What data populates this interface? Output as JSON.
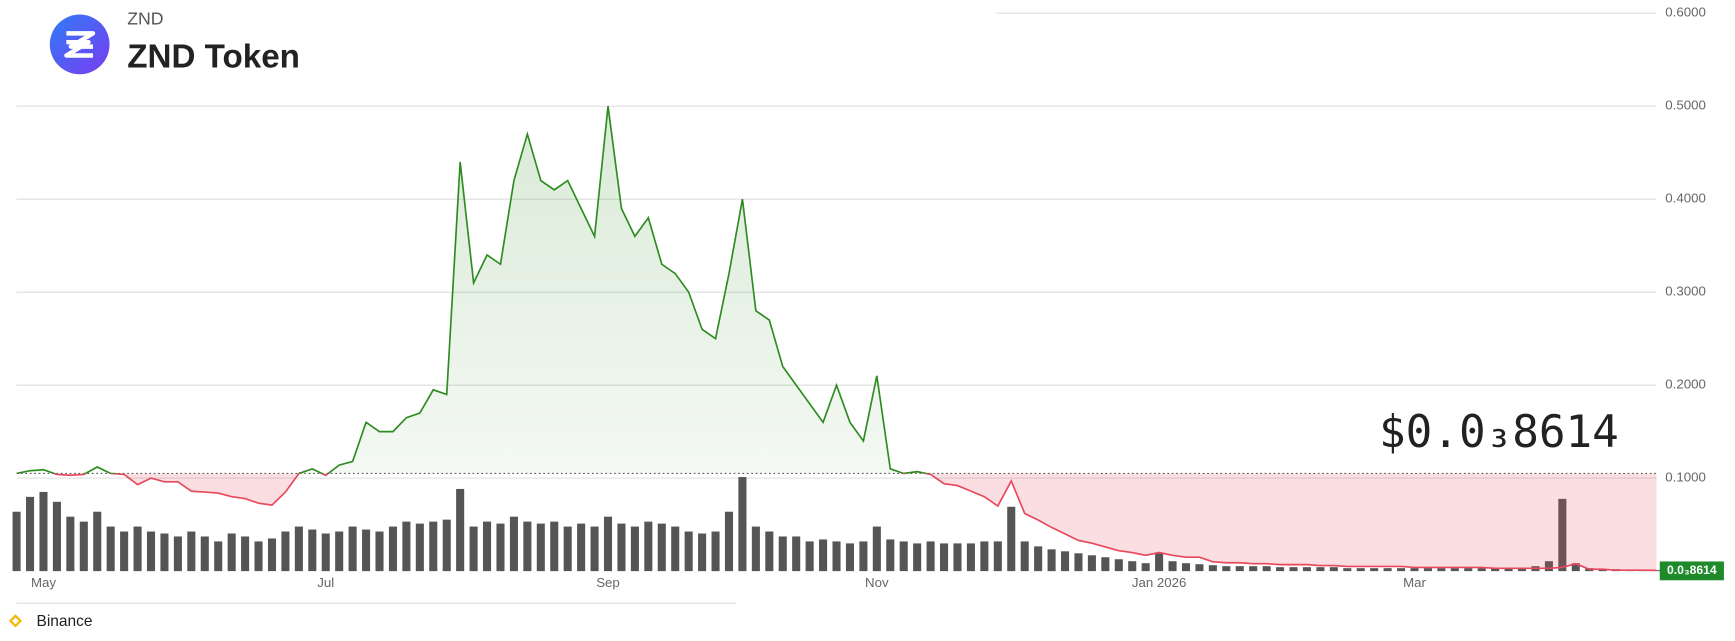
{
  "chart_data": {
    "type": "price-volume",
    "subtitle": "ZND",
    "title": "ZND Token",
    "source": "Binance",
    "price_display": "$0.0₃8614",
    "last_price": {
      "value": 0.0008614,
      "label": "0.0₃8614"
    },
    "baseline": 0.105,
    "up_color": "#2e8b22",
    "down_color": "#e8485c",
    "volume_color": "#555555",
    "tag_color": "#1f8a2a",
    "grid": true,
    "ylim": [
      0,
      0.614
    ],
    "yticks": [
      {
        "value": 0.1,
        "label": "0.1000"
      },
      {
        "value": 0.2,
        "label": "0.2000"
      },
      {
        "value": 0.3,
        "label": "0.3000"
      },
      {
        "value": 0.4,
        "label": "0.4000"
      },
      {
        "value": 0.5,
        "label": "0.5000"
      },
      {
        "value": 0.6,
        "label": "0.6000"
      }
    ],
    "categories": [
      null,
      null,
      "May",
      null,
      null,
      null,
      null,
      null,
      null,
      null,
      null,
      null,
      null,
      null,
      null,
      null,
      null,
      null,
      null,
      null,
      null,
      null,
      null,
      "Jul",
      null,
      null,
      null,
      null,
      null,
      null,
      null,
      null,
      null,
      null,
      null,
      null,
      null,
      null,
      null,
      null,
      null,
      null,
      null,
      null,
      "Sep",
      null,
      null,
      null,
      null,
      null,
      null,
      null,
      null,
      null,
      null,
      null,
      null,
      null,
      null,
      null,
      null,
      null,
      null,
      null,
      "Nov",
      null,
      null,
      null,
      null,
      null,
      null,
      null,
      null,
      null,
      null,
      null,
      null,
      null,
      null,
      null,
      null,
      null,
      null,
      null,
      null,
      "Jan 2026",
      null,
      null,
      null,
      null,
      null,
      null,
      null,
      null,
      null,
      null,
      null,
      null,
      null,
      null,
      null,
      null,
      null,
      null,
      "Mar",
      null,
      null,
      null,
      null,
      null,
      null,
      null,
      null,
      null,
      null,
      null,
      null,
      null,
      null,
      null,
      null,
      null,
      null
    ],
    "values": [
      0.105,
      0.108,
      0.109,
      0.104,
      0.103,
      0.104,
      0.112,
      0.105,
      0.104,
      0.093,
      0.1,
      0.096,
      0.096,
      0.086,
      0.085,
      0.084,
      0.08,
      0.078,
      0.073,
      0.071,
      0.085,
      0.105,
      0.11,
      0.103,
      0.114,
      0.118,
      0.16,
      0.15,
      0.15,
      0.165,
      0.17,
      0.195,
      0.19,
      0.44,
      0.31,
      0.34,
      0.33,
      0.42,
      0.47,
      0.42,
      0.41,
      0.42,
      0.39,
      0.36,
      0.5,
      0.39,
      0.36,
      0.38,
      0.33,
      0.32,
      0.3,
      0.26,
      0.25,
      0.32,
      0.4,
      0.28,
      0.27,
      0.22,
      0.2,
      0.18,
      0.16,
      0.2,
      0.16,
      0.14,
      0.21,
      0.11,
      0.105,
      0.107,
      0.104,
      0.094,
      0.092,
      0.086,
      0.08,
      0.07,
      0.097,
      0.062,
      0.055,
      0.047,
      0.04,
      0.033,
      0.03,
      0.026,
      0.022,
      0.02,
      0.017,
      0.02,
      0.017,
      0.015,
      0.015,
      0.01,
      0.009,
      0.009,
      0.008,
      0.008,
      0.007,
      0.007,
      0.007,
      0.006,
      0.006,
      0.005,
      0.005,
      0.005,
      0.005,
      0.005,
      0.004,
      0.004,
      0.004,
      0.004,
      0.004,
      0.004,
      0.003,
      0.003,
      0.003,
      0.003,
      0.003,
      0.004,
      0.008,
      0.002,
      0.002,
      0.001,
      0.001,
      0.001,
      0.0008614
    ],
    "volume": [
      60,
      75,
      80,
      70,
      55,
      50,
      60,
      45,
      40,
      45,
      40,
      38,
      35,
      40,
      35,
      30,
      38,
      35,
      30,
      33,
      40,
      45,
      42,
      38,
      40,
      45,
      42,
      40,
      45,
      50,
      48,
      50,
      52,
      83,
      45,
      50,
      48,
      55,
      50,
      48,
      50,
      45,
      48,
      45,
      55,
      48,
      45,
      50,
      48,
      45,
      40,
      38,
      40,
      60,
      95,
      45,
      40,
      35,
      35,
      30,
      32,
      30,
      28,
      30,
      45,
      32,
      30,
      28,
      30,
      28,
      28,
      28,
      30,
      30,
      65,
      30,
      25,
      22,
      20,
      18,
      16,
      14,
      12,
      10,
      8,
      18,
      10,
      8,
      7,
      6,
      5,
      5,
      5,
      5,
      4,
      4,
      4,
      4,
      4,
      3,
      3,
      3,
      3,
      3,
      3,
      3,
      3,
      3,
      3,
      3,
      3,
      3,
      3,
      5,
      10,
      73,
      8,
      3,
      2,
      2,
      1,
      1,
      1
    ]
  }
}
